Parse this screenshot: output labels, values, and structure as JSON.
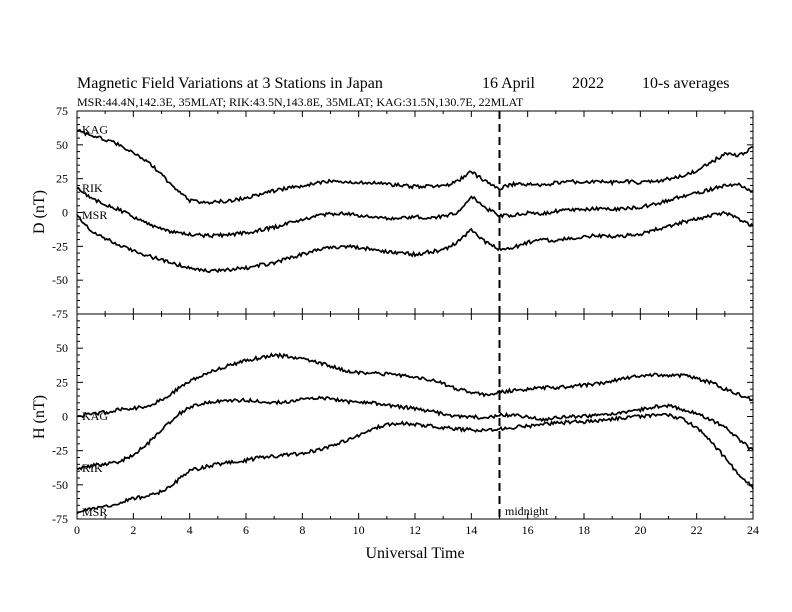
{
  "figure": {
    "title_parts": [
      "Magnetic Field Variations at 3 Stations in Japan",
      "16  April",
      "2022",
      "10-s averages"
    ],
    "subtitle": "MSR:44.4N,142.3E, 35MLAT;  RIK:43.5N,143.8E, 35MLAT;  KAG:31.5N,130.7E, 22MLAT",
    "xlabel": "Universal Time",
    "midnight_label": "midnight",
    "colors": {
      "line": "#000000",
      "background": "#ffffff"
    }
  },
  "chart_data": [
    {
      "type": "line",
      "panel": "top",
      "ylabel": "D (nT)",
      "xlim": [
        0,
        24
      ],
      "ylim": [
        -75,
        75
      ],
      "xticks": [
        "0",
        "2",
        "4",
        "6",
        "8",
        "10",
        "12",
        "14",
        "16",
        "18",
        "20",
        "22",
        "24"
      ],
      "yticks": [
        "75",
        "50",
        "25",
        "0",
        "-25",
        "-50",
        "-75"
      ],
      "vline_x": 15,
      "grid": false,
      "series": [
        {
          "name": "KAG",
          "x": [
            0,
            0.5,
            1,
            1.5,
            2,
            2.5,
            3,
            3.5,
            4,
            4.5,
            5,
            5.5,
            6,
            6.5,
            7,
            7.5,
            8,
            8.5,
            9,
            9.5,
            10,
            10.5,
            11,
            11.5,
            12,
            12.5,
            13,
            13.5,
            14,
            14.5,
            15,
            15.5,
            16,
            16.5,
            17,
            17.5,
            18,
            18.5,
            19,
            19.5,
            20,
            20.5,
            21,
            21.5,
            22,
            22.5,
            23,
            23.5,
            24
          ],
          "values": [
            61,
            57,
            54,
            50,
            44,
            38,
            28,
            17,
            9,
            7,
            8,
            9,
            11,
            13,
            16,
            18,
            20,
            22,
            23,
            23,
            22,
            22,
            21,
            20,
            19,
            20,
            19,
            23,
            30,
            23,
            18,
            21,
            21,
            20,
            22,
            23,
            22,
            23,
            22,
            23,
            22,
            23,
            25,
            27,
            31,
            37,
            43,
            42,
            48
          ]
        },
        {
          "name": "RIK",
          "x": [
            0,
            0.5,
            1,
            1.5,
            2,
            2.5,
            3,
            3.5,
            4,
            4.5,
            5,
            5.5,
            6,
            6.5,
            7,
            7.5,
            8,
            8.5,
            9,
            9.5,
            10,
            10.5,
            11,
            11.5,
            12,
            12.5,
            13,
            13.5,
            14,
            14.5,
            15,
            15.5,
            16,
            16.5,
            17,
            17.5,
            18,
            18.5,
            19,
            19.5,
            20,
            20.5,
            21,
            21.5,
            22,
            22.5,
            23,
            23.5,
            24
          ],
          "values": [
            18,
            10,
            6,
            2,
            -3,
            -8,
            -12,
            -15,
            -16,
            -17,
            -17,
            -16,
            -15,
            -13,
            -11,
            -8,
            -5,
            -3,
            -1,
            -1,
            -2,
            -3,
            -4,
            -4,
            -3,
            -4,
            -3,
            0,
            12,
            3,
            -2,
            -2,
            0,
            -1,
            1,
            2,
            2,
            3,
            2,
            3,
            4,
            6,
            9,
            12,
            14,
            17,
            20,
            21,
            15
          ]
        },
        {
          "name": "MSR",
          "x": [
            0,
            0.5,
            1,
            1.5,
            2,
            2.5,
            3,
            3.5,
            4,
            4.5,
            5,
            5.5,
            6,
            6.5,
            7,
            7.5,
            8,
            8.5,
            9,
            9.5,
            10,
            10.5,
            11,
            11.5,
            12,
            12.5,
            13,
            13.5,
            14,
            14.5,
            15,
            15.5,
            16,
            16.5,
            17,
            17.5,
            18,
            18.5,
            19,
            19.5,
            20,
            20.5,
            21,
            21.5,
            22,
            22.5,
            23,
            23.5,
            24
          ],
          "values": [
            -2,
            -13,
            -19,
            -24,
            -28,
            -32,
            -35,
            -38,
            -41,
            -43,
            -43,
            -42,
            -41,
            -39,
            -37,
            -34,
            -31,
            -28,
            -26,
            -25,
            -26,
            -27,
            -29,
            -30,
            -31,
            -29,
            -28,
            -22,
            -13,
            -22,
            -27,
            -26,
            -22,
            -20,
            -21,
            -19,
            -18,
            -17,
            -18,
            -17,
            -16,
            -13,
            -10,
            -7,
            -5,
            -2,
            0,
            -5,
            -10
          ]
        }
      ]
    },
    {
      "type": "line",
      "panel": "bottom",
      "ylabel": "H (nT)",
      "xlim": [
        0,
        24
      ],
      "ylim": [
        -75,
        75
      ],
      "xticks": [
        "0",
        "2",
        "4",
        "6",
        "8",
        "10",
        "12",
        "14",
        "16",
        "18",
        "20",
        "22",
        "24"
      ],
      "yticks": [
        "50",
        "25",
        "0",
        "-25",
        "-50",
        "-75"
      ],
      "vline_x": 15,
      "grid": false,
      "series": [
        {
          "name": "KAG",
          "x": [
            0,
            0.5,
            1,
            1.5,
            2,
            2.5,
            3,
            3.5,
            4,
            4.5,
            5,
            5.5,
            6,
            6.5,
            7,
            7.5,
            8,
            8.5,
            9,
            9.5,
            10,
            10.5,
            11,
            11.5,
            12,
            12.5,
            13,
            13.5,
            14,
            14.5,
            15,
            15.5,
            16,
            16.5,
            17,
            17.5,
            18,
            18.5,
            19,
            19.5,
            20,
            20.5,
            21,
            21.5,
            22,
            22.5,
            23,
            23.5,
            24
          ],
          "values": [
            0,
            2,
            3,
            5,
            6,
            8,
            12,
            19,
            26,
            31,
            35,
            38,
            41,
            43,
            45,
            44,
            42,
            40,
            37,
            34,
            32,
            32,
            31,
            30,
            29,
            27,
            24,
            20,
            18,
            16,
            18,
            19,
            20,
            21,
            21,
            22,
            23,
            24,
            26,
            28,
            30,
            31,
            30,
            30,
            28,
            25,
            20,
            16,
            12
          ]
        },
        {
          "name": "RIK",
          "x": [
            0,
            0.5,
            1,
            1.5,
            2,
            2.5,
            3,
            3.5,
            4,
            4.5,
            5,
            5.5,
            6,
            6.5,
            7,
            7.5,
            8,
            8.5,
            9,
            9.5,
            10,
            10.5,
            11,
            11.5,
            12,
            12.5,
            13,
            13.5,
            14,
            14.5,
            15,
            15.5,
            16,
            16.5,
            17,
            17.5,
            18,
            18.5,
            19,
            19.5,
            20,
            20.5,
            21,
            21.5,
            22,
            22.5,
            23,
            23.5,
            24
          ],
          "values": [
            -38,
            -36,
            -35,
            -33,
            -28,
            -20,
            -10,
            0,
            7,
            10,
            11,
            12,
            12,
            11,
            10,
            11,
            13,
            14,
            13,
            11,
            10,
            10,
            8,
            7,
            6,
            4,
            2,
            0,
            0,
            -1,
            1,
            1,
            0,
            -2,
            -1,
            0,
            0,
            1,
            2,
            3,
            5,
            7,
            8,
            5,
            2,
            -2,
            -8,
            -17,
            -25
          ]
        },
        {
          "name": "MSR",
          "x": [
            0,
            0.5,
            1,
            1.5,
            2,
            2.5,
            3,
            3.5,
            4,
            4.5,
            5,
            5.5,
            6,
            6.5,
            7,
            7.5,
            8,
            8.5,
            9,
            9.5,
            10,
            10.5,
            11,
            11.5,
            12,
            12.5,
            13,
            13.5,
            14,
            14.5,
            15,
            15.5,
            16,
            16.5,
            17,
            17.5,
            18,
            18.5,
            19,
            19.5,
            20,
            20.5,
            21,
            21.5,
            22,
            22.5,
            23,
            23.5,
            24
          ],
          "values": [
            -70,
            -68,
            -66,
            -63,
            -60,
            -58,
            -55,
            -48,
            -40,
            -37,
            -35,
            -33,
            -32,
            -30,
            -29,
            -28,
            -27,
            -25,
            -22,
            -18,
            -14,
            -9,
            -6,
            -5,
            -6,
            -7,
            -8,
            -9,
            -10,
            -10,
            -9,
            -8,
            -7,
            -6,
            -5,
            -4,
            -4,
            -3,
            -2,
            -1,
            0,
            1,
            1,
            -2,
            -8,
            -18,
            -30,
            -43,
            -52
          ]
        }
      ]
    }
  ]
}
